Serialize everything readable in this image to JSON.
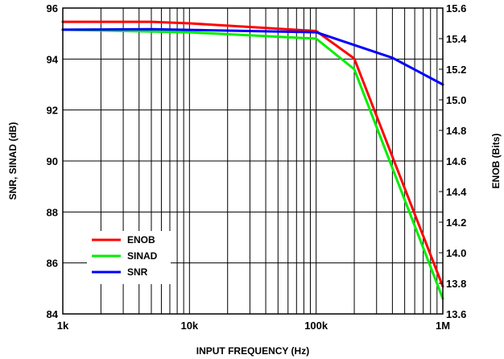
{
  "chart_data": {
    "type": "line",
    "xscale": "log",
    "x_unit": "Hz",
    "xlim": [
      1000,
      1000000
    ],
    "xticks": [
      {
        "value": 1000,
        "label": "1k"
      },
      {
        "value": 10000,
        "label": "10k"
      },
      {
        "value": 100000,
        "label": "100k"
      },
      {
        "value": 1000000,
        "label": "1M"
      }
    ],
    "xlabel": "INPUT FREQUENCY (Hz)",
    "ylabel": "SNR, SINAD (dB)",
    "ylim": [
      84,
      96
    ],
    "yticks": [
      "84",
      "86",
      "88",
      "90",
      "92",
      "94",
      "96"
    ],
    "y2label": "ENOB (Bits)",
    "y2lim": [
      13.6,
      15.6
    ],
    "y2ticks": [
      "13.6",
      "13.8",
      "14.0",
      "14.2",
      "14.4",
      "14.6",
      "14.8",
      "15.0",
      "15.2",
      "15.4",
      "15.6"
    ],
    "grid": true,
    "legend_position": "bottom-left",
    "series": [
      {
        "name": "ENOB",
        "axis": "right",
        "color": "#ff0000",
        "x": [
          1000,
          5000,
          10000,
          100000,
          200000,
          1000000
        ],
        "y": [
          15.51,
          15.51,
          15.5,
          15.45,
          15.27,
          13.78
        ]
      },
      {
        "name": "SINAD",
        "axis": "left",
        "color": "#00ee00",
        "x": [
          1000,
          10000,
          100000,
          200000,
          1000000
        ],
        "y": [
          95.15,
          95.05,
          94.8,
          93.6,
          84.6
        ]
      },
      {
        "name": "SNR",
        "axis": "left",
        "color": "#0000ff",
        "x": [
          1000,
          5000,
          100000,
          200000,
          400000,
          1000000
        ],
        "y": [
          95.15,
          95.17,
          95.05,
          94.55,
          94.05,
          93.0
        ]
      }
    ]
  }
}
